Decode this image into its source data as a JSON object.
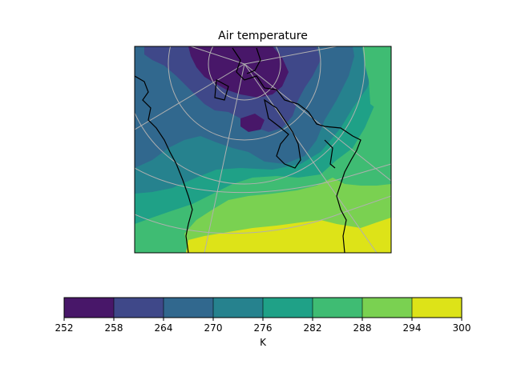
{
  "chart_data": {
    "type": "heatmap",
    "subtype": "filled-contour-map",
    "title": "Air temperature",
    "colorbar": {
      "label": "K",
      "ticks": [
        252,
        258,
        264,
        270,
        276,
        282,
        288,
        294,
        300
      ],
      "levels": [
        {
          "from": 252,
          "to": 258,
          "color": "#481769"
        },
        {
          "from": 258,
          "to": 264,
          "color": "#3f4889"
        },
        {
          "from": 264,
          "to": 270,
          "color": "#31688e"
        },
        {
          "from": 270,
          "to": 276,
          "color": "#26828e"
        },
        {
          "from": 276,
          "to": 282,
          "color": "#1fa187"
        },
        {
          "from": 282,
          "to": 288,
          "color": "#3fbc73"
        },
        {
          "from": 288,
          "to": 294,
          "color": "#7ad151"
        },
        {
          "from": 294,
          "to": 300,
          "color": "#dde318"
        }
      ]
    },
    "map": {
      "gridlines": true,
      "coastlines": true
    }
  }
}
